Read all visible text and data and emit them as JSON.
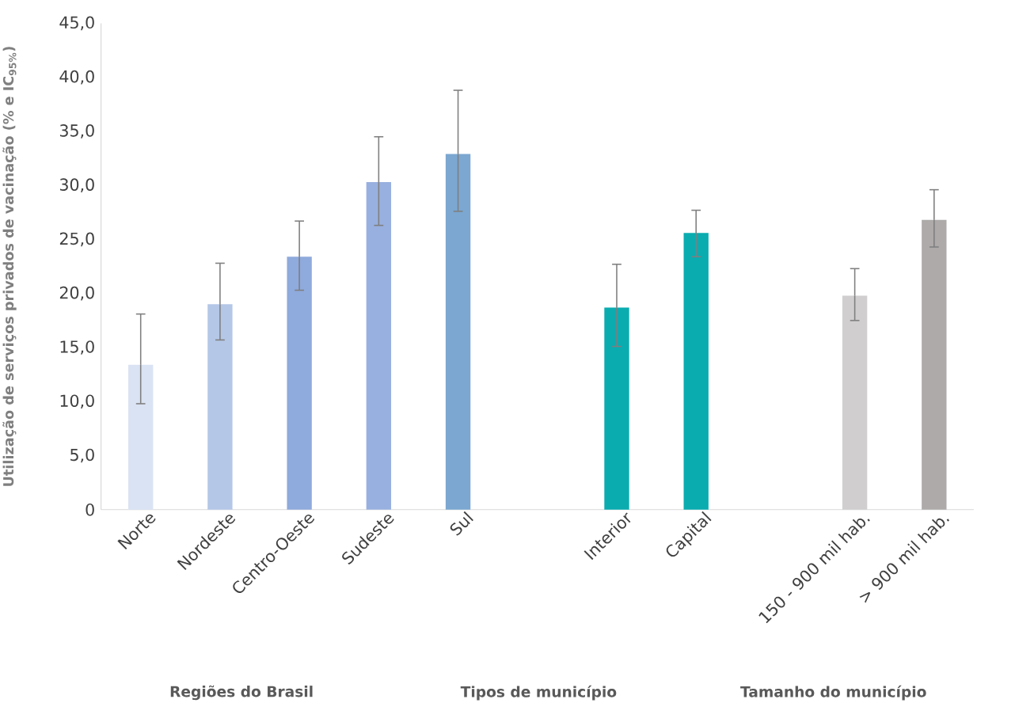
{
  "chart_data": {
    "type": "bar",
    "ylabel": "Utilização de serviços privados de vacinação (% e IC$_{95%}$)",
    "categories": [
      "Norte",
      "Nordeste",
      "Centro-Oeste",
      "Sudeste",
      "Sul",
      null,
      "Interior",
      "Capital",
      null,
      "150 - 900 mil hab.",
      "> 900 mil hab."
    ],
    "values": [
      13.4,
      19.0,
      23.4,
      30.3,
      32.9,
      null,
      18.7,
      25.6,
      null,
      19.8,
      26.8
    ],
    "errors": [
      [
        9.8,
        18.1
      ],
      [
        15.7,
        22.8
      ],
      [
        20.3,
        26.7
      ],
      [
        26.3,
        34.5
      ],
      [
        27.6,
        38.8
      ],
      null,
      [
        15.1,
        22.7
      ],
      [
        23.4,
        27.7
      ],
      null,
      [
        17.5,
        22.3
      ],
      [
        24.3,
        29.6
      ]
    ],
    "colors": [
      "#dae3f3",
      "#b4c7e7",
      "#8faadc",
      "#98b0df",
      "#7ba7d1",
      null,
      "#0aacb0",
      "#0aacb0",
      null,
      "#d0cece",
      "#aeaaaa"
    ],
    "ylim": [
      0,
      45
    ],
    "yticks": [
      {
        "value": 0,
        "label": "0"
      },
      {
        "value": 5,
        "label": "5,0"
      },
      {
        "value": 10,
        "label": "10,0"
      },
      {
        "value": 15,
        "label": "15,0"
      },
      {
        "value": 20,
        "label": "20,0"
      },
      {
        "value": 25,
        "label": "25,0"
      },
      {
        "value": 30,
        "label": "30,0"
      },
      {
        "value": 35,
        "label": "35,0"
      },
      {
        "value": 40,
        "label": "40,0"
      },
      {
        "value": 45,
        "label": "45,0"
      }
    ],
    "annotations": [
      "Regiões do Brasil",
      "Tipos de município",
      "Tamanho do município"
    ]
  }
}
